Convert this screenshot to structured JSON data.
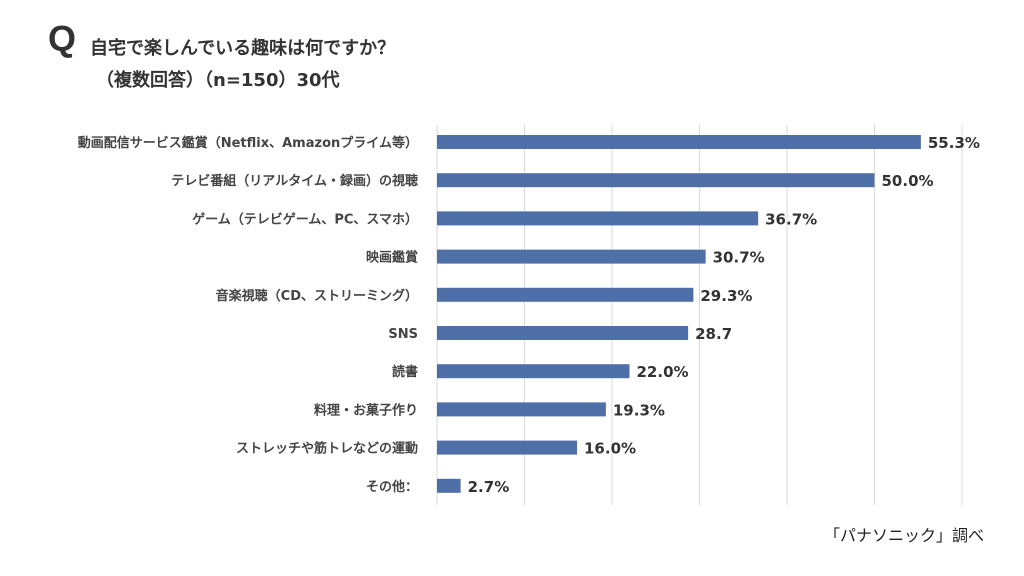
{
  "header": {
    "q_mark": "Q",
    "question": "自宅で楽しんでいる趣味は何ですか？",
    "subtitle": "（複数回答）（n=150）30代"
  },
  "source": "「パナソニック」調べ",
  "chart_data": {
    "type": "bar",
    "orientation": "horizontal",
    "categories": [
      "動画配信サービス鑑賞（Netflix、Amazonプライム等）",
      "テレビ番組（リアルタイム・録画）の視聴",
      "ゲーム（テレビゲーム、PC、スマホ）",
      "映画鑑賞",
      "音楽視聴（CD、ストリーミング）",
      "SNS",
      "読書",
      "料理・お菓子作り",
      "ストレッチや筋トレなどの運動",
      "その他："
    ],
    "values": [
      55.3,
      50.0,
      36.7,
      30.7,
      29.3,
      28.7,
      22.0,
      19.3,
      16.0,
      2.7
    ],
    "data_labels": [
      "55.3%",
      "50.0%",
      "36.7%",
      "30.7%",
      "29.3%",
      "28.7",
      "22.0%",
      "19.3%",
      "16.0%",
      "2.7%"
    ],
    "xlim": [
      0,
      60
    ],
    "grid": true,
    "bar_color": "#4e6fa8",
    "gridline_color": "#d9d9d9"
  }
}
